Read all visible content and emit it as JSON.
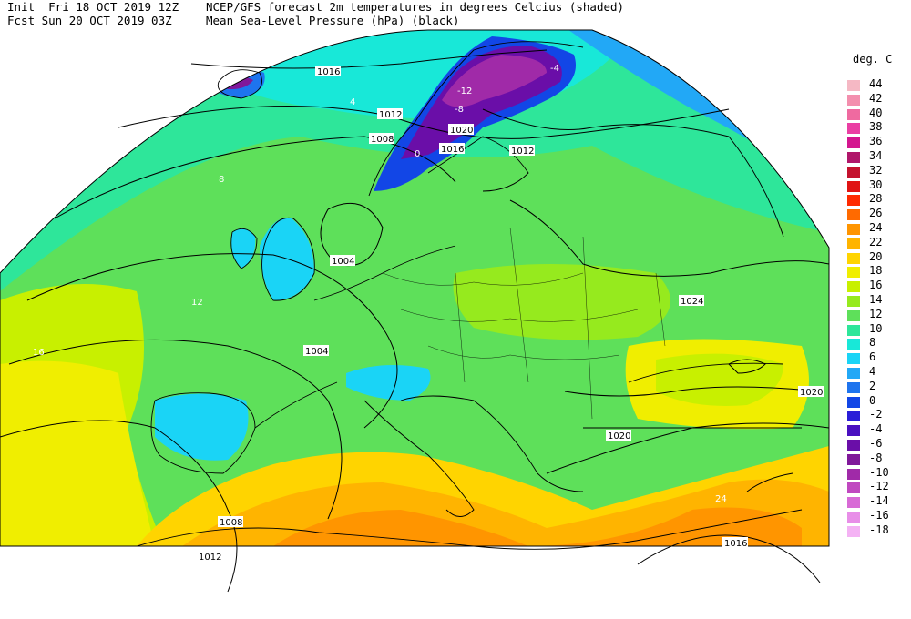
{
  "header": {
    "line1_left": "Init  Fri 18 OCT 2019 12Z",
    "line2_left": "Fcst Sun 20 OCT 2019 03Z",
    "line1_right": "NCEP/GFS forecast 2m temperatures in degrees Celcius (shaded)",
    "line2_right": "Mean Sea-Level Pressure (hPa) (black)"
  },
  "legend": {
    "unit": "deg. C",
    "items": [
      {
        "label": "44",
        "color": "#f5b8c4"
      },
      {
        "label": "42",
        "color": "#f38fae"
      },
      {
        "label": "40",
        "color": "#ef6aa0"
      },
      {
        "label": "38",
        "color": "#ea3ea3"
      },
      {
        "label": "36",
        "color": "#d4168f"
      },
      {
        "label": "34",
        "color": "#b0166a"
      },
      {
        "label": "32",
        "color": "#c4122e"
      },
      {
        "label": "30",
        "color": "#e01414"
      },
      {
        "label": "28",
        "color": "#ff2a00"
      },
      {
        "label": "26",
        "color": "#ff6a00"
      },
      {
        "label": "24",
        "color": "#ff9500"
      },
      {
        "label": "22",
        "color": "#ffb400"
      },
      {
        "label": "20",
        "color": "#ffd400"
      },
      {
        "label": "18",
        "color": "#f0ee00"
      },
      {
        "label": "16",
        "color": "#c8f000"
      },
      {
        "label": "14",
        "color": "#96ea1e"
      },
      {
        "label": "12",
        "color": "#5ee05a"
      },
      {
        "label": "10",
        "color": "#2ee69a"
      },
      {
        "label": "8",
        "color": "#18e8d8"
      },
      {
        "label": "6",
        "color": "#1ad4f6"
      },
      {
        "label": "4",
        "color": "#22a8f6"
      },
      {
        "label": "2",
        "color": "#1e74ee"
      },
      {
        "label": "0",
        "color": "#1246e6"
      },
      {
        "label": "-2",
        "color": "#2a1ed8"
      },
      {
        "label": "-4",
        "color": "#4a10c0"
      },
      {
        "label": "-6",
        "color": "#6a0ea8"
      },
      {
        "label": "-8",
        "color": "#80189a"
      },
      {
        "label": "-10",
        "color": "#a02aa8"
      },
      {
        "label": "-12",
        "color": "#c048c0"
      },
      {
        "label": "-14",
        "color": "#d86ad6"
      },
      {
        "label": "-16",
        "color": "#e88ee8"
      },
      {
        "label": "-18",
        "color": "#f4b2f4"
      }
    ]
  },
  "map_labels": [
    {
      "text": "1016"
    },
    {
      "text": "1012"
    },
    {
      "text": "1008"
    },
    {
      "text": "1020"
    },
    {
      "text": "1016"
    },
    {
      "text": "1012"
    },
    {
      "text": "1004"
    },
    {
      "text": "1004"
    },
    {
      "text": "1024"
    },
    {
      "text": "1020"
    },
    {
      "text": "1020"
    },
    {
      "text": "1008"
    },
    {
      "text": "1012"
    },
    {
      "text": "1016"
    },
    {
      "text": "-12"
    },
    {
      "text": "-8"
    },
    {
      "text": "-4"
    },
    {
      "text": "0"
    },
    {
      "text": "4"
    },
    {
      "text": "8"
    },
    {
      "text": "12"
    },
    {
      "text": "16"
    },
    {
      "text": "20"
    },
    {
      "text": "24"
    }
  ]
}
